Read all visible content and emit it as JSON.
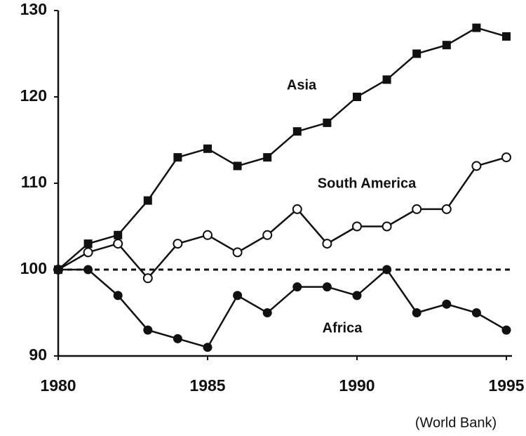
{
  "chart_data": {
    "type": "line",
    "x": [
      1980,
      1981,
      1982,
      1983,
      1984,
      1985,
      1986,
      1987,
      1988,
      1989,
      1990,
      1991,
      1992,
      1993,
      1994,
      1995
    ],
    "series": [
      {
        "name": "Asia",
        "color": "#111111",
        "marker": "square",
        "values": [
          100,
          103,
          104,
          108,
          113,
          114,
          112,
          113,
          116,
          117,
          120,
          122,
          125,
          126,
          128,
          127
        ]
      },
      {
        "name": "South America",
        "color": "#111111",
        "marker": "open-circle",
        "values": [
          100,
          102,
          103,
          99,
          103,
          104,
          102,
          104,
          107,
          103,
          105,
          105,
          107,
          107,
          112,
          113
        ]
      },
      {
        "name": "Africa",
        "color": "#111111",
        "marker": "circle",
        "values": [
          100,
          100,
          97,
          93,
          92,
          91,
          97,
          95,
          98,
          98,
          97,
          100,
          95,
          96,
          95,
          93
        ]
      }
    ],
    "reference_line": 100,
    "xlim": [
      1980,
      1995
    ],
    "xticks": [
      1980,
      1985,
      1990,
      1995
    ],
    "ylim": [
      90,
      130
    ],
    "yticks": [
      90,
      100,
      110,
      120,
      130
    ],
    "source": "(World Bank)"
  }
}
